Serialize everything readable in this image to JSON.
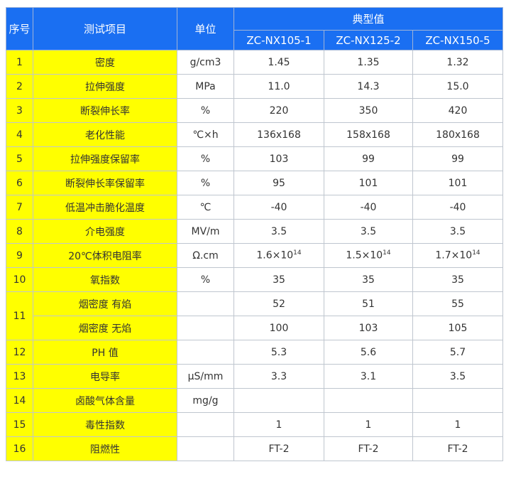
{
  "header": {
    "index": "序号",
    "item": "测试项目",
    "unit": "单位",
    "typical": "典型值",
    "models": [
      "ZC-NX105-1",
      "ZC-NX125-2",
      "ZC-NX150-5"
    ]
  },
  "rows": [
    {
      "no": "1",
      "item": "密度",
      "unit": "g/cm3",
      "v": [
        "1.45",
        "1.35",
        "1.32"
      ]
    },
    {
      "no": "2",
      "item": "拉伸强度",
      "unit": "MPa",
      "v": [
        "11.0",
        "14.3",
        "15.0"
      ]
    },
    {
      "no": "3",
      "item": "断裂伸长率",
      "unit": "%",
      "v": [
        "220",
        "350",
        "420"
      ]
    },
    {
      "no": "4",
      "item": "老化性能",
      "unit": "℃×h",
      "v": [
        "136x168",
        "158x168",
        "180x168"
      ]
    },
    {
      "no": "5",
      "item": "拉伸强度保留率",
      "unit": "%",
      "v": [
        "103",
        "99",
        "99"
      ]
    },
    {
      "no": "6",
      "item": "断裂伸长率保留率",
      "unit": "%",
      "v": [
        "95",
        "101",
        "101"
      ]
    },
    {
      "no": "7",
      "item": "低温冲击脆化温度",
      "unit": "℃",
      "v": [
        "-40",
        "-40",
        "-40"
      ]
    },
    {
      "no": "8",
      "item": "介电强度",
      "unit": "MV/m",
      "v": [
        "3.5",
        "3.5",
        "3.5"
      ]
    },
    {
      "no": "9",
      "item": "20℃体积电阻率",
      "unit": "Ω.cm",
      "v": [
        "1.6×10",
        "1.5×10",
        "1.7×10"
      ],
      "exp": "14"
    },
    {
      "no": "10",
      "item": "氧指数",
      "unit": "%",
      "v": [
        "35",
        "35",
        "35"
      ]
    },
    {
      "no": "11",
      "item": "烟密度 有焰",
      "unit": "",
      "v": [
        "52",
        "51",
        "55"
      ]
    },
    {
      "no": "",
      "item": "烟密度 无焰",
      "unit": "",
      "v": [
        "100",
        "103",
        "105"
      ]
    },
    {
      "no": "12",
      "item": "PH 值",
      "unit": "",
      "v": [
        "5.3",
        "5.6",
        "5.7"
      ]
    },
    {
      "no": "13",
      "item": "电导率",
      "unit": "μS/mm",
      "v": [
        "3.3",
        "3.1",
        "3.5"
      ]
    },
    {
      "no": "14",
      "item": "卤酸气体含量",
      "unit": "mg/g",
      "v": [
        "",
        "",
        ""
      ]
    },
    {
      "no": "15",
      "item": "毒性指数",
      "unit": "",
      "v": [
        "1",
        "1",
        "1"
      ]
    },
    {
      "no": "16",
      "item": "阻燃性",
      "unit": "",
      "v": [
        "FT-2",
        "FT-2",
        "FT-2"
      ]
    }
  ],
  "colors": {
    "header_bg": "#1a6ff2",
    "highlight": "#ffff00"
  }
}
